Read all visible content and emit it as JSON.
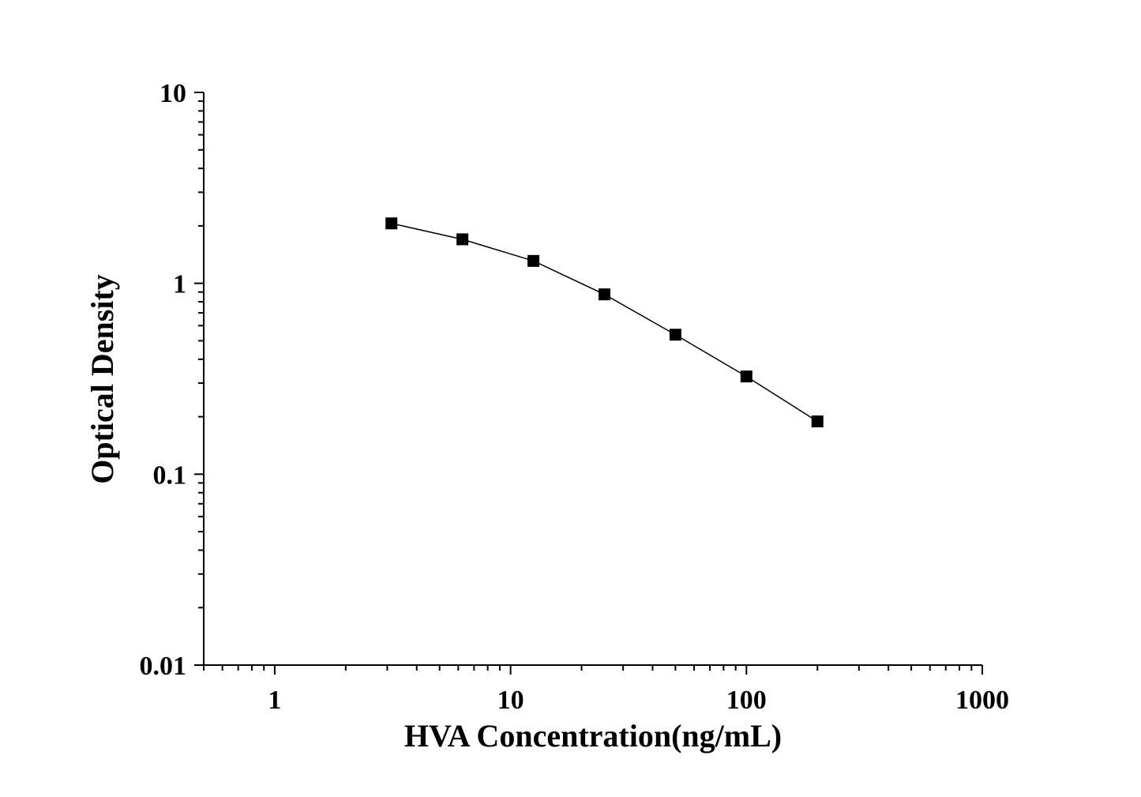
{
  "chart_data": {
    "type": "line",
    "title": "",
    "xlabel": "HVA Concentration(ng/mL)",
    "ylabel": "Optical Density",
    "xscale": "log",
    "yscale": "log",
    "xlim": [
      0.5,
      1000
    ],
    "ylim": [
      0.01,
      10
    ],
    "xticks": [
      "1",
      "10",
      "100",
      "1000"
    ],
    "yticks": [
      "0.01",
      "0.1",
      "1",
      "10"
    ],
    "grid": false,
    "marker": "square",
    "color": "#000000",
    "series": [
      {
        "x": [
          3.125,
          6.25,
          12.5,
          25,
          50,
          100,
          200
        ],
        "y": [
          2.06,
          1.7,
          1.31,
          0.875,
          0.538,
          0.325,
          0.189
        ]
      }
    ]
  }
}
